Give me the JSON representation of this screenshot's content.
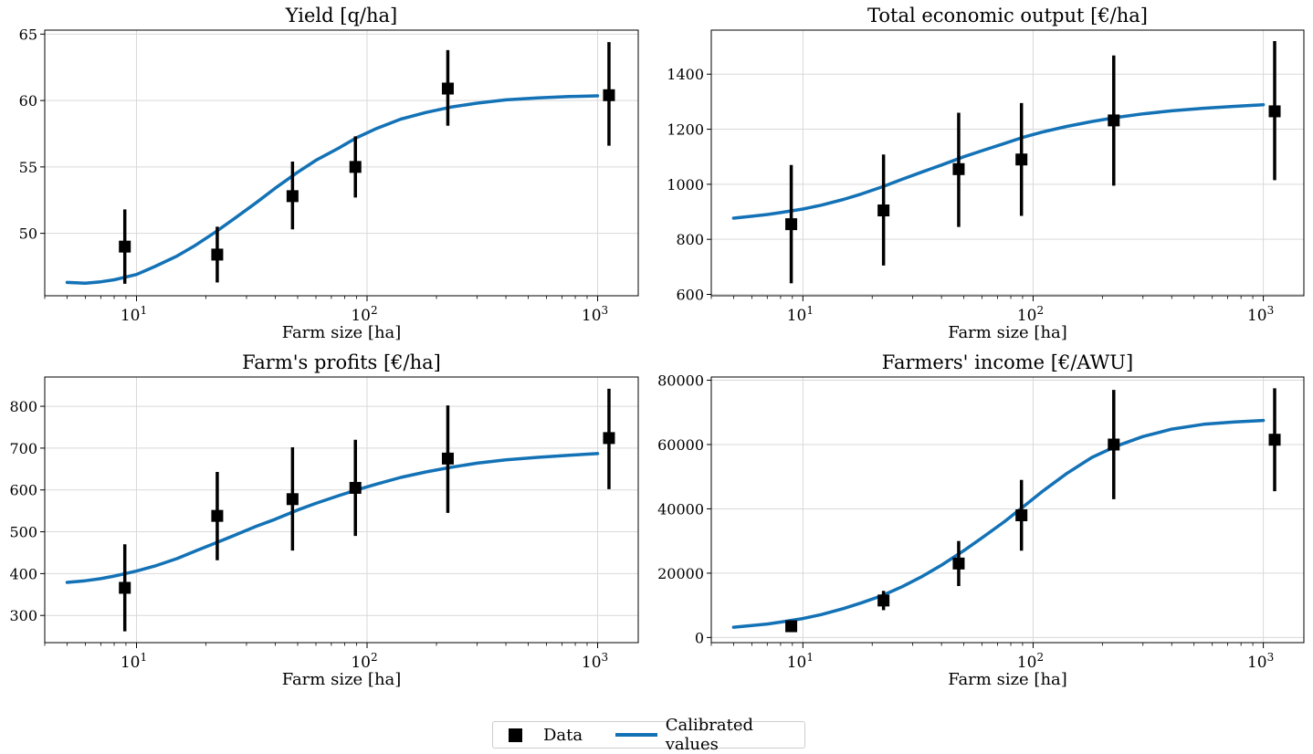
{
  "figure": {
    "legend": {
      "data_label": "Data",
      "model_label": "Calibrated values"
    },
    "colors": {
      "model": "#1372b6",
      "data": "#000000",
      "grid": "#d9d9d9"
    }
  },
  "chart_data": [
    {
      "type": "line",
      "title": "Yield [q/ha]",
      "xlabel": "Farm size [ha]",
      "ylabel": "",
      "xscale": "log",
      "xlim": [
        4,
        1500
      ],
      "ylim": [
        45.3,
        65.3
      ],
      "xticks": [
        10,
        100,
        1000
      ],
      "xtick_labels": [
        [
          "10",
          "1"
        ],
        [
          "10",
          "2"
        ],
        [
          "10",
          "3"
        ]
      ],
      "yticks": [
        50,
        55,
        60,
        65
      ],
      "ytick_labels": [
        "50",
        "55",
        "60",
        "65"
      ],
      "grid": true,
      "series": [
        {
          "name": "Data",
          "kind": "errorbar",
          "x": [
            8.9,
            22.4,
            47.5,
            89,
            224,
            1120
          ],
          "y": [
            49.0,
            48.4,
            52.8,
            55.0,
            60.9,
            60.4
          ],
          "yerr_low": [
            46.2,
            46.3,
            50.3,
            52.7,
            58.1,
            56.6
          ],
          "yerr_high": [
            51.8,
            50.5,
            55.4,
            57.3,
            63.8,
            64.4
          ]
        },
        {
          "name": "Calibrated values",
          "kind": "line",
          "x": [
            5,
            6,
            7,
            8,
            10,
            12,
            15,
            18,
            22,
            27,
            33,
            40,
            50,
            60,
            75,
            90,
            110,
            140,
            180,
            230,
            300,
            400,
            550,
            750,
            1000
          ],
          "y": [
            46.3,
            46.25,
            46.35,
            46.5,
            46.9,
            47.5,
            48.3,
            49.1,
            50.1,
            51.2,
            52.3,
            53.4,
            54.6,
            55.5,
            56.4,
            57.2,
            57.9,
            58.6,
            59.1,
            59.5,
            59.8,
            60.05,
            60.2,
            60.3,
            60.35
          ]
        }
      ]
    },
    {
      "type": "line",
      "title": "Total economic output [€/ha]",
      "xlabel": "Farm size [ha]",
      "ylabel": "",
      "xscale": "log",
      "xlim": [
        4,
        1500
      ],
      "ylim": [
        595,
        1560
      ],
      "xticks": [
        10,
        100,
        1000
      ],
      "xtick_labels": [
        [
          "10",
          "1"
        ],
        [
          "10",
          "2"
        ],
        [
          "10",
          "3"
        ]
      ],
      "yticks": [
        600,
        800,
        1000,
        1200,
        1400
      ],
      "ytick_labels": [
        "600",
        "800",
        "1000",
        "1200",
        "1400"
      ],
      "grid": true,
      "series": [
        {
          "name": "Data",
          "kind": "errorbar",
          "x": [
            8.9,
            22.4,
            47.5,
            89,
            224,
            1120
          ],
          "y": [
            855,
            905,
            1055,
            1090,
            1232,
            1265
          ],
          "yerr_low": [
            640,
            705,
            845,
            885,
            995,
            1015
          ],
          "yerr_high": [
            1070,
            1108,
            1260,
            1295,
            1468,
            1520
          ]
        },
        {
          "name": "Calibrated values",
          "kind": "line",
          "x": [
            5,
            6,
            7,
            8,
            10,
            12,
            15,
            18,
            22,
            27,
            33,
            40,
            50,
            60,
            75,
            90,
            110,
            140,
            180,
            230,
            300,
            400,
            550,
            750,
            1000
          ],
          "y": [
            877,
            884,
            890,
            897,
            910,
            924,
            945,
            965,
            990,
            1018,
            1045,
            1070,
            1100,
            1122,
            1148,
            1170,
            1190,
            1210,
            1228,
            1243,
            1256,
            1267,
            1276,
            1283,
            1289
          ]
        }
      ]
    },
    {
      "type": "line",
      "title": "Farm's profits [€/ha]",
      "xlabel": "Farm size [ha]",
      "ylabel": "",
      "xscale": "log",
      "xlim": [
        4,
        1500
      ],
      "ylim": [
        235,
        870
      ],
      "xticks": [
        10,
        100,
        1000
      ],
      "xtick_labels": [
        [
          "10",
          "1"
        ],
        [
          "10",
          "2"
        ],
        [
          "10",
          "3"
        ]
      ],
      "yticks": [
        300,
        400,
        500,
        600,
        700,
        800
      ],
      "ytick_labels": [
        "300",
        "400",
        "500",
        "600",
        "700",
        "800"
      ],
      "grid": true,
      "series": [
        {
          "name": "Data",
          "kind": "errorbar",
          "x": [
            8.9,
            22.4,
            47.5,
            89,
            224,
            1120
          ],
          "y": [
            366,
            538,
            578,
            605,
            675,
            724
          ],
          "yerr_low": [
            262,
            432,
            455,
            490,
            545,
            602
          ],
          "yerr_high": [
            470,
            643,
            702,
            720,
            802,
            842
          ]
        },
        {
          "name": "Calibrated values",
          "kind": "line",
          "x": [
            5,
            6,
            7,
            8,
            10,
            12,
            15,
            18,
            22,
            27,
            33,
            40,
            50,
            60,
            75,
            90,
            110,
            140,
            180,
            230,
            300,
            400,
            550,
            750,
            1000
          ],
          "y": [
            379,
            383,
            388,
            394,
            406,
            418,
            436,
            454,
            473,
            493,
            513,
            530,
            552,
            568,
            586,
            600,
            614,
            630,
            643,
            654,
            664,
            672,
            678,
            683,
            687
          ]
        }
      ]
    },
    {
      "type": "line",
      "title": "Farmers' income [€/AWU]",
      "xlabel": "Farm size [ha]",
      "ylabel": "",
      "xscale": "log",
      "xlim": [
        4,
        1500
      ],
      "ylim": [
        -1600,
        81000
      ],
      "xticks": [
        10,
        100,
        1000
      ],
      "xtick_labels": [
        [
          "10",
          "1"
        ],
        [
          "10",
          "2"
        ],
        [
          "10",
          "3"
        ]
      ],
      "yticks": [
        0,
        20000,
        40000,
        60000,
        80000
      ],
      "ytick_labels": [
        "0",
        "20000",
        "40000",
        "60000",
        "80000"
      ],
      "grid": true,
      "series": [
        {
          "name": "Data",
          "kind": "errorbar",
          "x": [
            8.9,
            22.4,
            47.5,
            89,
            224,
            1120
          ],
          "y": [
            3500,
            11500,
            23000,
            38000,
            60000,
            61500
          ],
          "yerr_low": [
            2600,
            8500,
            16000,
            27000,
            43000,
            45500
          ],
          "yerr_high": [
            4400,
            14500,
            30000,
            49000,
            77000,
            77500
          ]
        },
        {
          "name": "Calibrated values",
          "kind": "line",
          "x": [
            5,
            6,
            7,
            8,
            10,
            12,
            15,
            18,
            22,
            27,
            33,
            40,
            50,
            60,
            75,
            90,
            110,
            140,
            180,
            230,
            300,
            400,
            550,
            750,
            1000
          ],
          "y": [
            3200,
            3700,
            4200,
            4800,
            5900,
            7100,
            9000,
            10800,
            13000,
            15800,
            19000,
            22500,
            27000,
            31000,
            36000,
            40500,
            45500,
            51000,
            56000,
            59500,
            62500,
            64800,
            66300,
            67000,
            67500
          ]
        }
      ]
    }
  ]
}
